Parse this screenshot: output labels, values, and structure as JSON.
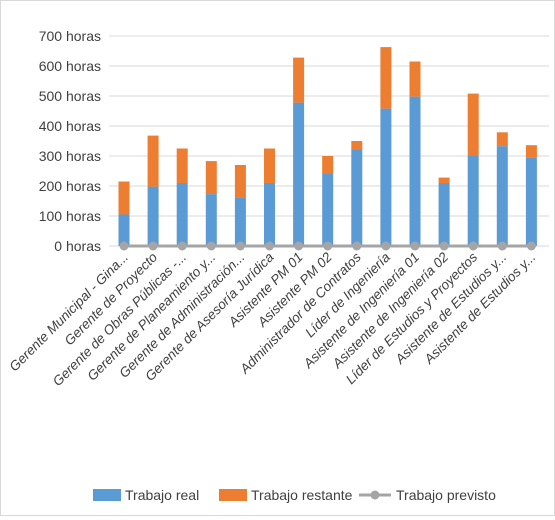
{
  "chart_data": {
    "type": "bar",
    "stacked": true,
    "title": "",
    "xlabel": "",
    "ylabel": "",
    "ylim": [
      0,
      700
    ],
    "yticks": [
      "700 horas",
      "600 horas",
      "500 horas",
      "400 horas",
      "300 horas",
      "200 horas",
      "100 horas",
      "0 horas"
    ],
    "ytick_values": [
      700,
      600,
      500,
      400,
      300,
      200,
      100,
      0
    ],
    "grid": true,
    "legend_position": "bottom",
    "categories": [
      "Gerente Municipal - Gina...",
      "Gerente de Proyecto",
      "Gerente de Obras Públicas -...",
      "Gerente de Planeamiento y...",
      "Gerente de Administración...",
      "Gerente de Asesoría Jurídica",
      "Asistente PM 01",
      "Asistente PM 02",
      "Administrador de Contratos",
      "Líder de Ingeniería",
      "Asistente de Ingeniería 01",
      "Asistente de Ingeniería 02",
      "Líder de Estudios y Proyectos",
      "Asistente de Estudios y...",
      "Asistente de Estudios y..."
    ],
    "series": [
      {
        "name": "Trabajo real",
        "color": "#5b9bd5",
        "values": [
          105,
          198,
          210,
          173,
          162,
          210,
          478,
          240,
          320,
          458,
          498,
          210,
          300,
          333,
          296
        ]
      },
      {
        "name": "Trabajo restante",
        "color": "#ed7d31",
        "values": [
          110,
          170,
          115,
          110,
          108,
          115,
          150,
          60,
          30,
          205,
          117,
          18,
          208,
          46,
          40
        ]
      },
      {
        "name": "Trabajo previsto",
        "color": "#a5a5a5",
        "marker": "line",
        "values": [
          0,
          0,
          0,
          0,
          0,
          0,
          0,
          0,
          0,
          0,
          0,
          0,
          0,
          0,
          0
        ]
      }
    ]
  }
}
